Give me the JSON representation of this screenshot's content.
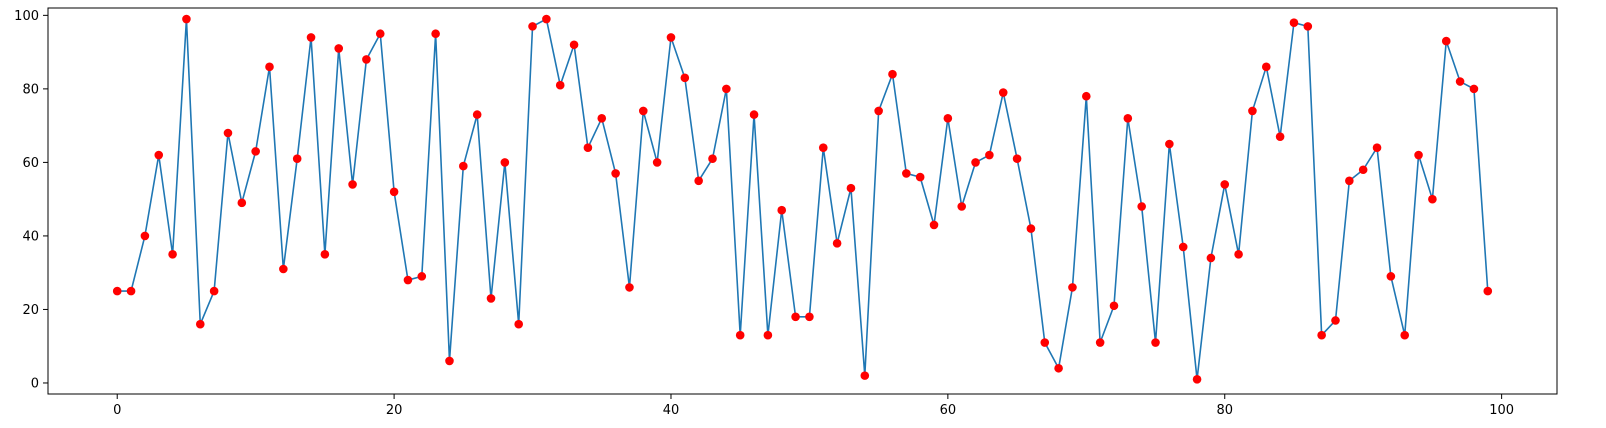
{
  "chart_data": {
    "type": "line",
    "title": "",
    "xlabel": "",
    "ylabel": "",
    "xlim": [
      -5,
      104
    ],
    "ylim": [
      -3,
      102
    ],
    "xticks": [
      0,
      20,
      40,
      60,
      80,
      100
    ],
    "yticks": [
      0,
      20,
      40,
      60,
      80,
      100
    ],
    "grid": false,
    "legend": "none",
    "line_color": "#1f77b4",
    "marker_color": "#ff0000",
    "x": [
      0,
      1,
      2,
      3,
      4,
      5,
      6,
      7,
      8,
      9,
      10,
      11,
      12,
      13,
      14,
      15,
      16,
      17,
      18,
      19,
      20,
      21,
      22,
      23,
      24,
      25,
      26,
      27,
      28,
      29,
      30,
      31,
      32,
      33,
      34,
      35,
      36,
      37,
      38,
      39,
      40,
      41,
      42,
      43,
      44,
      45,
      46,
      47,
      48,
      49,
      50,
      51,
      52,
      53,
      54,
      55,
      56,
      57,
      58,
      59,
      60,
      61,
      62,
      63,
      64,
      65,
      66,
      67,
      68,
      69,
      70,
      71,
      72,
      73,
      74,
      75,
      76,
      77,
      78,
      79,
      80,
      81,
      82,
      83,
      84,
      85,
      86,
      87,
      88,
      89,
      90,
      91,
      92,
      93,
      94,
      95,
      96,
      97,
      98,
      99
    ],
    "y": [
      25,
      25,
      40,
      62,
      35,
      99,
      16,
      25,
      68,
      49,
      63,
      86,
      31,
      61,
      94,
      35,
      91,
      54,
      88,
      95,
      52,
      28,
      29,
      95,
      6,
      59,
      73,
      23,
      60,
      16,
      97,
      99,
      81,
      92,
      64,
      72,
      57,
      26,
      74,
      60,
      94,
      83,
      55,
      61,
      80,
      13,
      73,
      13,
      47,
      18,
      18,
      64,
      38,
      53,
      2,
      74,
      84,
      57,
      56,
      43,
      72,
      48,
      60,
      62,
      79,
      61,
      42,
      11,
      4,
      26,
      78,
      11,
      21,
      72,
      48,
      11,
      65,
      37,
      1,
      34,
      54,
      35,
      74,
      86,
      67,
      98,
      97,
      13,
      17,
      55,
      58,
      64,
      29,
      13,
      62,
      50,
      93,
      82,
      80,
      25
    ]
  }
}
